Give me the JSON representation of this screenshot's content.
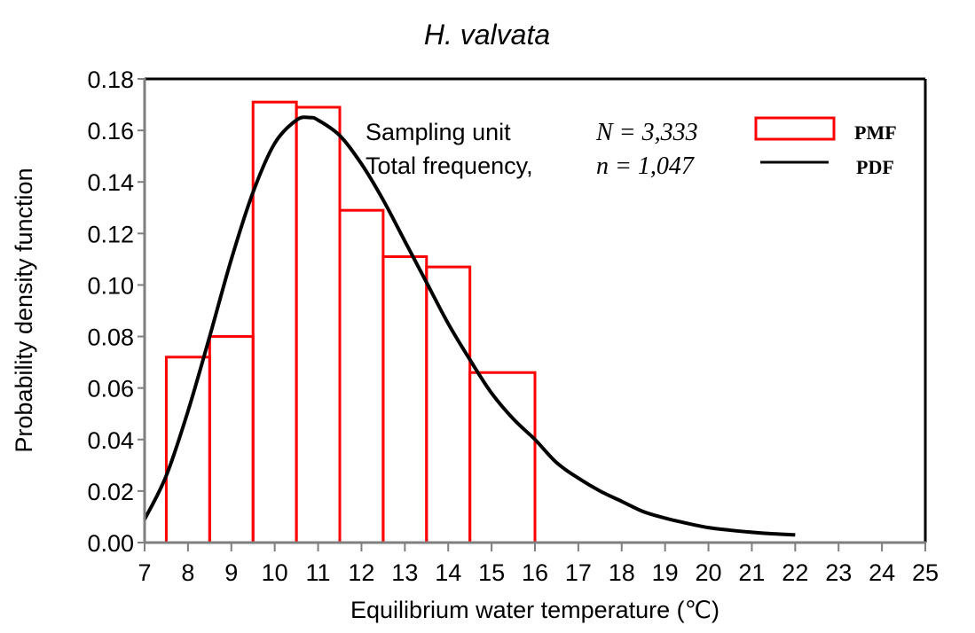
{
  "chart_data": {
    "type": "bar",
    "title": "H. valvata",
    "xlabel": "Equilibrium water temperature (℃)",
    "ylabel": "Probability density function",
    "xlim": [
      7,
      25
    ],
    "ylim": [
      0,
      0.18
    ],
    "x_ticks": [
      7,
      8,
      9,
      10,
      11,
      12,
      13,
      14,
      15,
      16,
      17,
      18,
      19,
      20,
      21,
      22,
      23,
      24,
      25
    ],
    "y_ticks": [
      "0.00",
      "0.02",
      "0.04",
      "0.06",
      "0.08",
      "0.10",
      "0.12",
      "0.14",
      "0.16",
      "0.18"
    ],
    "grid": false,
    "series": [
      {
        "name": "PMF",
        "type": "bar",
        "color": "#ff0000",
        "bins": [
          {
            "x0": 7.5,
            "x1": 8.5,
            "value": 0.072
          },
          {
            "x0": 8.5,
            "x1": 9.5,
            "value": 0.08
          },
          {
            "x0": 9.5,
            "x1": 10.5,
            "value": 0.171
          },
          {
            "x0": 10.5,
            "x1": 11.5,
            "value": 0.169
          },
          {
            "x0": 11.5,
            "x1": 12.5,
            "value": 0.129
          },
          {
            "x0": 12.5,
            "x1": 13.5,
            "value": 0.111
          },
          {
            "x0": 13.5,
            "x1": 14.5,
            "value": 0.107
          },
          {
            "x0": 14.5,
            "x1": 16.0,
            "value": 0.066
          }
        ]
      },
      {
        "name": "PDF",
        "type": "line",
        "color": "#000000",
        "x": [
          7,
          7.5,
          8,
          8.5,
          9,
          9.5,
          10,
          10.5,
          10.8,
          11,
          11.5,
          12,
          12.5,
          13,
          13.5,
          14,
          14.5,
          15,
          15.5,
          16,
          16.5,
          17,
          17.5,
          18,
          18.5,
          19,
          19.5,
          20,
          20.5,
          21,
          21.5,
          22
        ],
        "y": [
          0.009,
          0.026,
          0.051,
          0.08,
          0.11,
          0.136,
          0.155,
          0.164,
          0.165,
          0.164,
          0.158,
          0.147,
          0.133,
          0.117,
          0.101,
          0.085,
          0.071,
          0.058,
          0.048,
          0.04,
          0.031,
          0.025,
          0.02,
          0.016,
          0.012,
          0.0095,
          0.0075,
          0.0058,
          0.0048,
          0.004,
          0.0034,
          0.003
        ]
      }
    ],
    "legend": {
      "placement": "top-right",
      "items": [
        {
          "label": "PMF",
          "symbol": "rect-outline",
          "color": "#ff0000"
        },
        {
          "label": "PDF",
          "symbol": "line",
          "color": "#000000"
        }
      ]
    },
    "annotations": [
      {
        "label": "Sampling unit",
        "value": "N = 3,333"
      },
      {
        "label": "Total frequency,",
        "value": "n = 1,047"
      }
    ]
  }
}
